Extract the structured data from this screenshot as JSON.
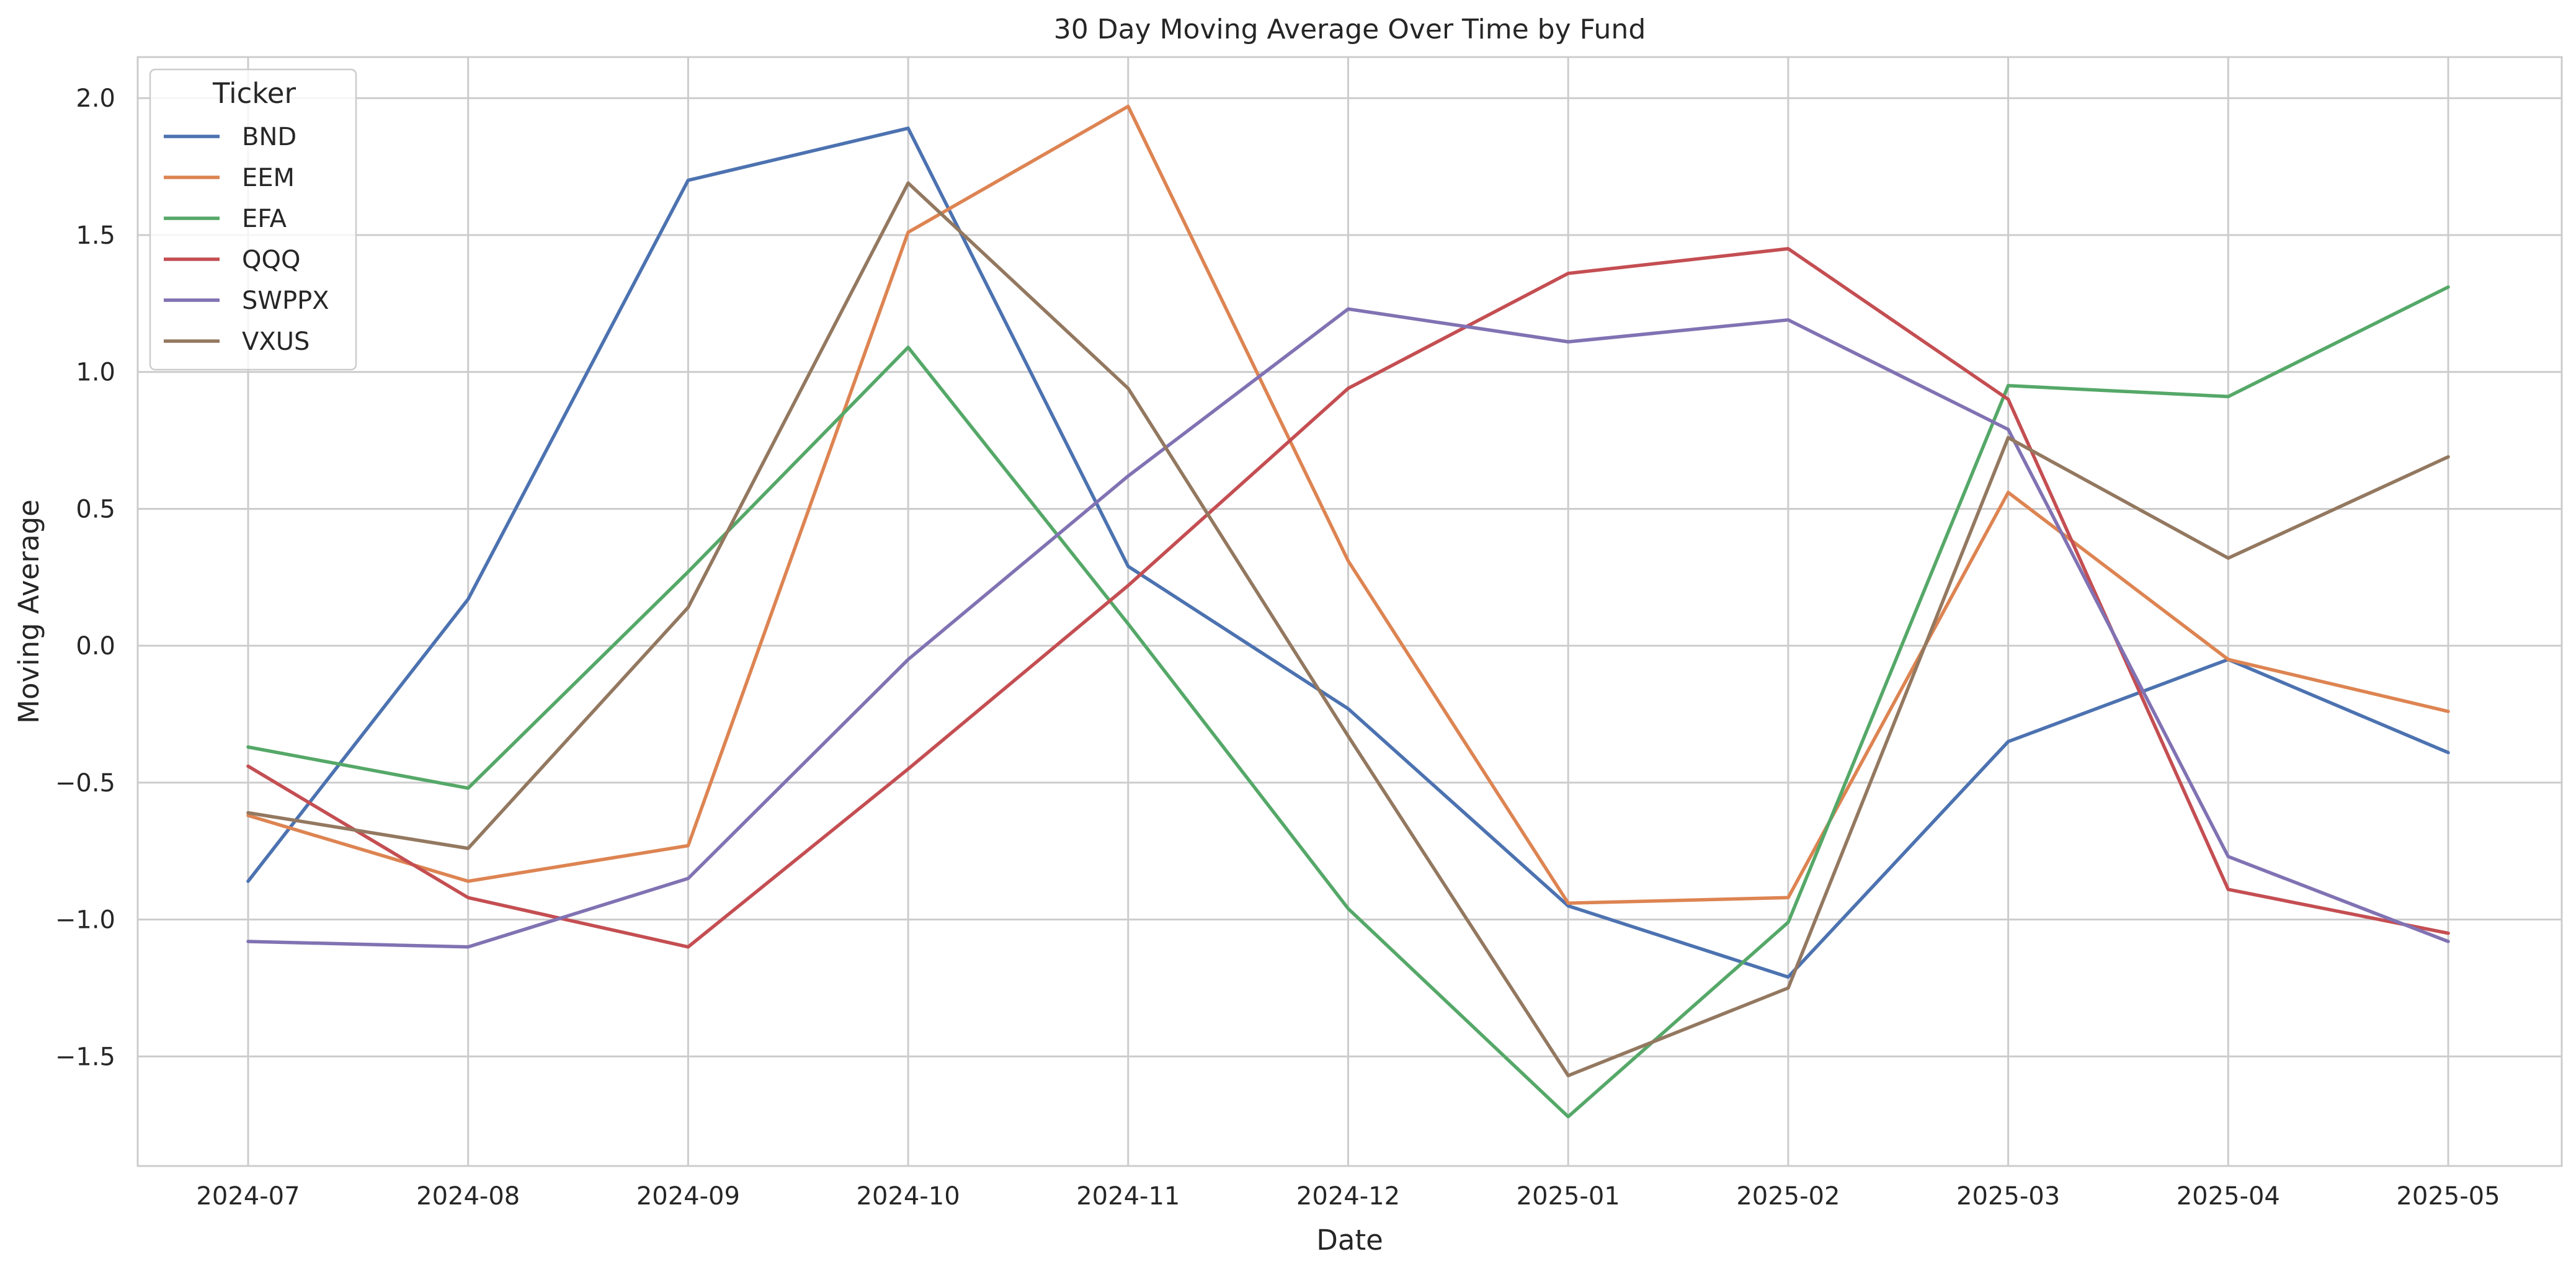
{
  "chart_data": {
    "type": "line",
    "title": "30 Day Moving Average Over Time by Fund",
    "xlabel": "Date",
    "ylabel": "Moving Average",
    "x": [
      "2024-07",
      "2024-08",
      "2024-09",
      "2024-10",
      "2024-11",
      "2024-12",
      "2025-01",
      "2025-02",
      "2025-03",
      "2025-04",
      "2025-05"
    ],
    "ylim": [
      -1.9,
      2.15
    ],
    "yticks": [
      -1.5,
      -1.0,
      -0.5,
      0.0,
      0.5,
      1.0,
      1.5,
      2.0
    ],
    "ytick_labels": [
      "−1.5",
      "−1.0",
      "−0.5",
      "0.0",
      "0.5",
      "1.0",
      "1.5",
      "2.0"
    ],
    "grid": true,
    "legend": {
      "title": "Ticker",
      "placement": "top-left"
    },
    "series": [
      {
        "name": "BND",
        "color": "#4c72b0",
        "values": [
          -0.86,
          0.17,
          1.7,
          1.89,
          0.29,
          -0.23,
          -0.95,
          -1.21,
          -0.35,
          -0.05,
          -0.39
        ]
      },
      {
        "name": "EEM",
        "color": "#dd8452",
        "values": [
          -0.62,
          -0.86,
          -0.73,
          1.51,
          1.97,
          0.31,
          -0.94,
          -0.92,
          0.56,
          -0.05,
          -0.24
        ]
      },
      {
        "name": "EFA",
        "color": "#55a868",
        "values": [
          -0.37,
          -0.52,
          0.27,
          1.09,
          0.08,
          -0.96,
          -1.72,
          -1.01,
          0.95,
          0.91,
          1.31
        ]
      },
      {
        "name": "QQQ",
        "color": "#c44e52",
        "values": [
          -0.44,
          -0.92,
          -1.1,
          -0.45,
          0.22,
          0.94,
          1.36,
          1.45,
          0.9,
          -0.89,
          -1.05
        ]
      },
      {
        "name": "SWPPX",
        "color": "#8172b3",
        "values": [
          -1.08,
          -1.1,
          -0.85,
          -0.05,
          0.62,
          1.23,
          1.11,
          1.19,
          0.79,
          -0.77,
          -1.08
        ]
      },
      {
        "name": "VXUS",
        "color": "#937860",
        "values": [
          -0.61,
          -0.74,
          0.14,
          1.69,
          0.94,
          -0.33,
          -1.57,
          -1.25,
          0.76,
          0.32,
          0.69
        ]
      }
    ]
  }
}
